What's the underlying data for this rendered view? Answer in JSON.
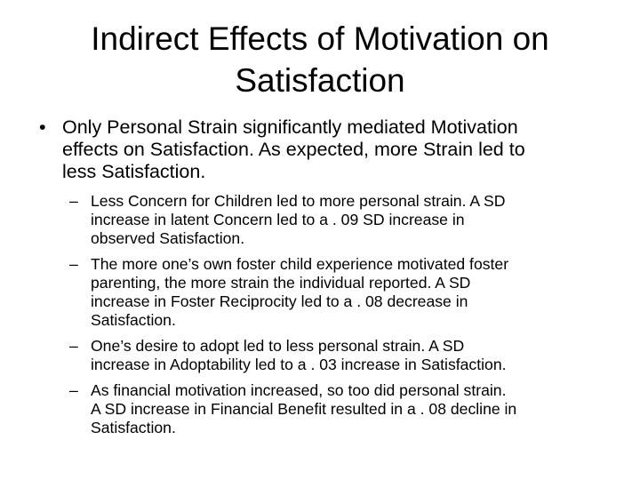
{
  "slide": {
    "title_lines": [
      "Indirect Effects of Motivation on",
      "Satisfaction"
    ],
    "main_bullet": {
      "marker": "•",
      "lines": [
        "Only Personal Strain significantly mediated Motivation",
        "effects on Satisfaction.  As expected, more Strain led to",
        "less Satisfaction."
      ]
    },
    "sub_bullets": [
      {
        "marker": "–",
        "lines": [
          "Less Concern for Children led to more personal strain. A SD",
          "increase in latent Concern led to a . 09 SD increase in",
          "observed Satisfaction."
        ]
      },
      {
        "marker": "–",
        "lines": [
          "The more one’s own foster child experience motivated foster",
          "parenting, the more strain the individual reported.  A SD",
          "increase in Foster Reciprocity led to a . 08 decrease in",
          "Satisfaction."
        ]
      },
      {
        "marker": "–",
        "lines": [
          "One’s desire to adopt led to less personal strain.  A SD",
          "increase in Adoptability led to a . 03 increase in Satisfaction."
        ]
      },
      {
        "marker": "–",
        "lines": [
          "As financial motivation increased, so too did personal strain.",
          "A SD increase in Financial Benefit resulted in a . 08 decline in",
          "Satisfaction."
        ]
      }
    ]
  }
}
